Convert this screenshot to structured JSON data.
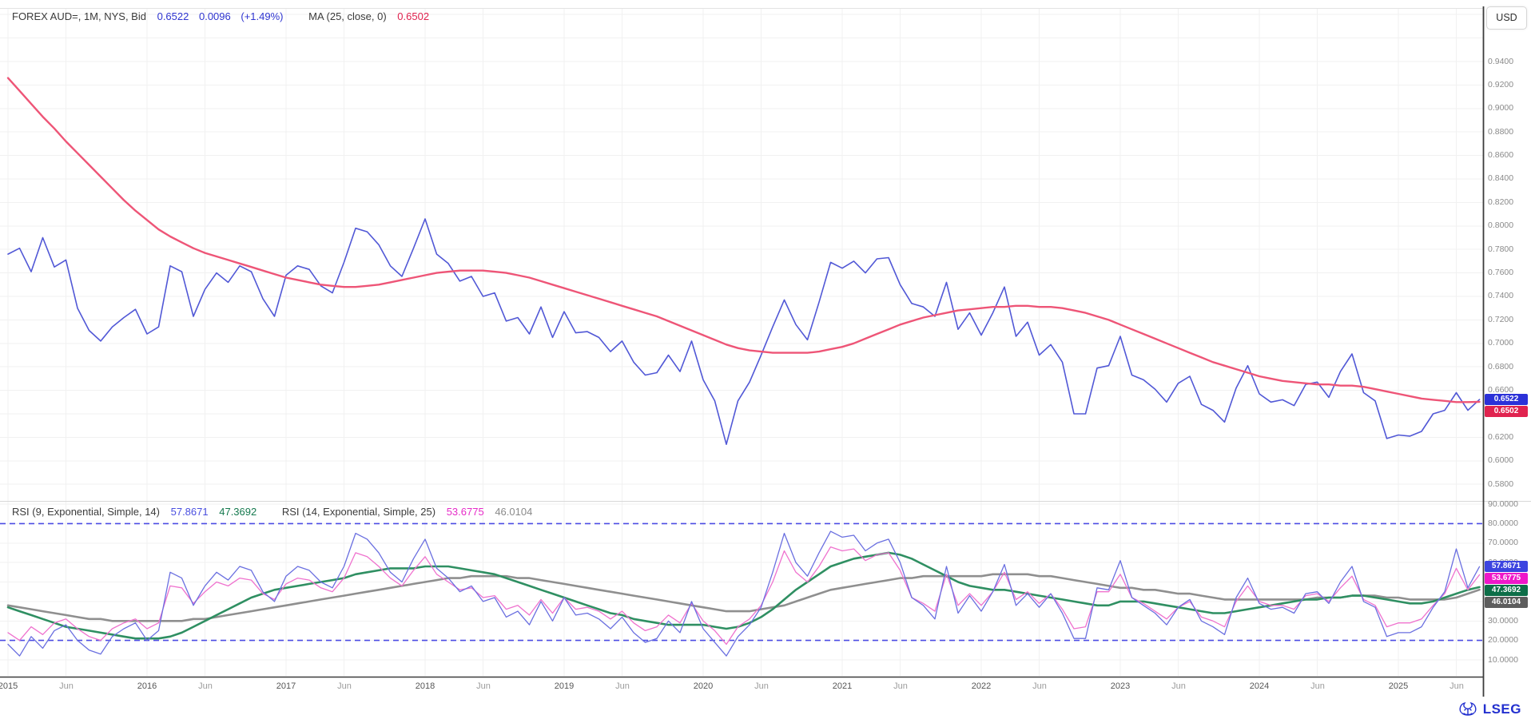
{
  "header": {
    "instrument": "FOREX AUD=, 1M, NYS, Bid",
    "bid": "0.6522",
    "change": "0.0096",
    "change_pct": "(+1.49%)",
    "ma_label": "MA (25, close, 0)",
    "ma_value": "0.6502",
    "accent_blue": "#2f35d0",
    "accent_red": "#e0234f"
  },
  "rsi_header": {
    "rsi9_label": "RSI (9, Exponential, Simple, 14)",
    "rsi9_value": "57.8671",
    "rsi9_signal_value": "47.3692",
    "rsi14_label": "RSI (14, Exponential, Simple, 25)",
    "rsi14_value": "53.6775",
    "rsi14_signal_value": "46.0104",
    "rsi9_color": "#4a4fe0",
    "rsi9_signal_color": "#15794e",
    "rsi14_color": "#e62bc8",
    "rsi14_signal_color": "#8a8a8a"
  },
  "axis_button": {
    "label": "USD"
  },
  "logo": {
    "text": "LSEG",
    "color": "#2330cf"
  },
  "price_badges": [
    {
      "label": "0.6522",
      "value": 0.6522,
      "color": "#2b31d8"
    },
    {
      "label": "0.6502",
      "value": 0.6502,
      "color": "#e0234f"
    }
  ],
  "rsi_badges": [
    {
      "label": "57.8671",
      "value": 57.8671,
      "color": "#3c44e0"
    },
    {
      "label": "53.6775",
      "value": 53.6775,
      "color": "#ef17c9"
    },
    {
      "label": "47.3692",
      "value": 47.3692,
      "color": "#0d6e48"
    },
    {
      "label": "46.0104",
      "value": 46.0104,
      "color": "#5d5d5d"
    }
  ],
  "chart_data": {
    "type": "line",
    "title": "FOREX AUD=, 1M, NYS, Bid — with MA(25) and RSI panel",
    "x_start": "2015-01",
    "x_interval": "monthly",
    "x_ticks": [
      {
        "m": 0,
        "label": "2015"
      },
      {
        "m": 5,
        "label": "Jun"
      },
      {
        "m": 12,
        "label": "2016"
      },
      {
        "m": 17,
        "label": "Jun"
      },
      {
        "m": 24,
        "label": "2017"
      },
      {
        "m": 29,
        "label": "Jun"
      },
      {
        "m": 36,
        "label": "2018"
      },
      {
        "m": 41,
        "label": "Jun"
      },
      {
        "m": 48,
        "label": "2019"
      },
      {
        "m": 53,
        "label": "Jun"
      },
      {
        "m": 60,
        "label": "2020"
      },
      {
        "m": 65,
        "label": "Jun"
      },
      {
        "m": 72,
        "label": "2021"
      },
      {
        "m": 77,
        "label": "Jun"
      },
      {
        "m": 84,
        "label": "2022"
      },
      {
        "m": 89,
        "label": "Jun"
      },
      {
        "m": 96,
        "label": "2023"
      },
      {
        "m": 101,
        "label": "Jun"
      },
      {
        "m": 108,
        "label": "2024"
      },
      {
        "m": 113,
        "label": "Jun"
      },
      {
        "m": 120,
        "label": "2025"
      },
      {
        "m": 125,
        "label": "Jun"
      }
    ],
    "panels": [
      {
        "name": "price",
        "unit": "USD",
        "ylim": [
          0.5665,
          0.9856
        ],
        "yticks": [
          0.94,
          0.92,
          0.9,
          0.88,
          0.86,
          0.84,
          0.82,
          0.8,
          0.78,
          0.76,
          0.74,
          0.72,
          0.7,
          0.68,
          0.66,
          0.64,
          0.62,
          0.6,
          0.58
        ],
        "grid": true,
        "series": [
          {
            "name": "bid",
            "color": "#5158d6",
            "width": 1.6,
            "last": 0.6522,
            "values": [
              0.776,
              0.781,
              0.761,
              0.79,
              0.765,
              0.771,
              0.73,
              0.711,
              0.702,
              0.714,
              0.722,
              0.729,
              0.708,
              0.714,
              0.766,
              0.761,
              0.723,
              0.746,
              0.76,
              0.752,
              0.766,
              0.761,
              0.738,
              0.723,
              0.758,
              0.766,
              0.763,
              0.749,
              0.743,
              0.769,
              0.798,
              0.795,
              0.784,
              0.766,
              0.757,
              0.781,
              0.806,
              0.776,
              0.768,
              0.753,
              0.757,
              0.74,
              0.743,
              0.719,
              0.722,
              0.708,
              0.731,
              0.705,
              0.727,
              0.709,
              0.71,
              0.705,
              0.693,
              0.702,
              0.684,
              0.673,
              0.675,
              0.69,
              0.676,
              0.702,
              0.669,
              0.651,
              0.614,
              0.651,
              0.667,
              0.69,
              0.714,
              0.737,
              0.716,
              0.703,
              0.735,
              0.769,
              0.764,
              0.77,
              0.76,
              0.772,
              0.773,
              0.75,
              0.734,
              0.731,
              0.723,
              0.752,
              0.712,
              0.726,
              0.707,
              0.726,
              0.748,
              0.706,
              0.718,
              0.69,
              0.699,
              0.684,
              0.64,
              0.64,
              0.679,
              0.681,
              0.706,
              0.673,
              0.669,
              0.661,
              0.65,
              0.666,
              0.672,
              0.648,
              0.643,
              0.633,
              0.662,
              0.681,
              0.657,
              0.65,
              0.652,
              0.647,
              0.665,
              0.667,
              0.654,
              0.676,
              0.691,
              0.658,
              0.651,
              0.619,
              0.622,
              0.621,
              0.625,
              0.64,
              0.643,
              0.658,
              0.643,
              0.6522
            ]
          },
          {
            "name": "ma25",
            "color": "#ee5577",
            "width": 2.4,
            "last": 0.6502,
            "values": [
              0.926,
              0.915,
              0.904,
              0.893,
              0.883,
              0.872,
              0.862,
              0.852,
              0.842,
              0.832,
              0.822,
              0.813,
              0.805,
              0.797,
              0.791,
              0.786,
              0.781,
              0.777,
              0.774,
              0.771,
              0.768,
              0.765,
              0.762,
              0.759,
              0.756,
              0.754,
              0.752,
              0.75,
              0.749,
              0.748,
              0.748,
              0.749,
              0.75,
              0.752,
              0.754,
              0.756,
              0.758,
              0.76,
              0.761,
              0.762,
              0.762,
              0.762,
              0.761,
              0.76,
              0.758,
              0.756,
              0.753,
              0.75,
              0.747,
              0.744,
              0.741,
              0.738,
              0.735,
              0.732,
              0.729,
              0.726,
              0.723,
              0.719,
              0.715,
              0.711,
              0.707,
              0.703,
              0.699,
              0.696,
              0.694,
              0.693,
              0.692,
              0.692,
              0.692,
              0.692,
              0.693,
              0.695,
              0.697,
              0.7,
              0.704,
              0.708,
              0.712,
              0.716,
              0.719,
              0.722,
              0.724,
              0.726,
              0.728,
              0.729,
              0.73,
              0.731,
              0.731,
              0.732,
              0.732,
              0.731,
              0.731,
              0.73,
              0.728,
              0.726,
              0.723,
              0.72,
              0.716,
              0.712,
              0.708,
              0.704,
              0.7,
              0.696,
              0.692,
              0.688,
              0.684,
              0.681,
              0.678,
              0.675,
              0.672,
              0.67,
              0.668,
              0.667,
              0.666,
              0.665,
              0.665,
              0.664,
              0.664,
              0.663,
              0.661,
              0.659,
              0.657,
              0.655,
              0.653,
              0.652,
              0.651,
              0.65,
              0.65,
              0.6502
            ]
          }
        ]
      },
      {
        "name": "rsi",
        "ylim": [
          1.6,
          90.6
        ],
        "yticks": [
          90,
          80,
          70,
          60,
          50,
          40,
          30,
          20,
          10
        ],
        "reference_lines": [
          80,
          20
        ],
        "reference_color": "#4b4be4",
        "grid": true,
        "series": [
          {
            "name": "rsi14_signal_sma25",
            "color": "#8f8f8f",
            "width": 2.6,
            "last": 46.0104,
            "values": [
              38,
              37,
              36,
              35,
              34,
              33,
              32,
              31,
              31,
              30,
              30,
              30,
              30,
              30,
              30,
              30,
              31,
              31,
              32,
              33,
              34,
              35,
              36,
              37,
              38,
              39,
              40,
              41,
              42,
              43,
              44,
              45,
              46,
              47,
              48,
              49,
              50,
              51,
              52,
              52,
              53,
              53,
              53,
              53,
              52,
              52,
              51,
              50,
              49,
              48,
              47,
              46,
              45,
              44,
              43,
              42,
              41,
              40,
              39,
              38,
              37,
              36,
              35,
              35,
              35,
              36,
              37,
              38,
              40,
              42,
              44,
              46,
              47,
              48,
              49,
              50,
              51,
              52,
              52,
              53,
              53,
              53,
              53,
              53,
              53,
              54,
              54,
              54,
              54,
              53,
              53,
              52,
              51,
              50,
              49,
              48,
              47,
              47,
              46,
              46,
              45,
              44,
              44,
              43,
              42,
              41,
              41,
              41,
              41,
              41,
              41,
              41,
              41,
              42,
              42,
              42,
              43,
              43,
              43,
              42,
              42,
              41,
              41,
              41,
              41,
              42,
              44,
              46.0104
            ]
          },
          {
            "name": "rsi9_signal_sma14",
            "color": "#2f8f62",
            "width": 2.6,
            "last": 47.3692,
            "values": [
              37,
              35,
              33,
              31,
              29,
              27,
              26,
              25,
              24,
              23,
              22,
              21,
              21,
              21,
              22,
              24,
              27,
              30,
              33,
              36,
              39,
              42,
              44,
              46,
              47,
              48,
              49,
              50,
              51,
              52,
              54,
              55,
              56,
              57,
              57,
              57,
              58,
              58,
              58,
              57,
              56,
              55,
              54,
              52,
              50,
              48,
              46,
              44,
              42,
              40,
              38,
              36,
              34,
              33,
              31,
              30,
              29,
              28,
              28,
              28,
              28,
              27,
              26,
              27,
              29,
              32,
              36,
              41,
              46,
              50,
              54,
              58,
              60,
              62,
              63,
              64,
              65,
              64,
              62,
              59,
              56,
              53,
              50,
              48,
              47,
              46,
              46,
              45,
              44,
              43,
              42,
              41,
              40,
              39,
              38,
              38,
              40,
              40,
              40,
              39,
              38,
              37,
              36,
              35,
              34,
              34,
              35,
              36,
              37,
              38,
              39,
              40,
              41,
              41,
              42,
              42,
              43,
              43,
              42,
              41,
              40,
              39,
              39,
              40,
              42,
              44,
              46,
              47.3692
            ]
          },
          {
            "name": "rsi14",
            "color": "#ef72ce",
            "width": 1.3,
            "last": 53.6775,
            "values": [
              24,
              20,
              27,
              23,
              29,
              31,
              26,
              22,
              20,
              26,
              29,
              31,
              26,
              29,
              48,
              47,
              39,
              45,
              50,
              48,
              52,
              51,
              44,
              41,
              49,
              52,
              51,
              47,
              45,
              52,
              65,
              63,
              58,
              52,
              48,
              56,
              63,
              54,
              50,
              46,
              47,
              42,
              43,
              36,
              38,
              33,
              41,
              34,
              42,
              36,
              37,
              35,
              31,
              35,
              29,
              25,
              27,
              33,
              29,
              39,
              30,
              25,
              18,
              27,
              31,
              38,
              50,
              66,
              55,
              50,
              58,
              68,
              66,
              67,
              61,
              64,
              65,
              56,
              42,
              39,
              35,
              54,
              38,
              44,
              38,
              45,
              55,
              41,
              45,
              39,
              44,
              36,
              26,
              27,
              45,
              45,
              54,
              42,
              39,
              35,
              31,
              37,
              40,
              32,
              30,
              27,
              40,
              48,
              40,
              38,
              38,
              36,
              43,
              44,
              40,
              47,
              53,
              41,
              38,
              27,
              29,
              29,
              31,
              38,
              44,
              57,
              46,
              53.6775
            ]
          },
          {
            "name": "rsi9",
            "color": "#6a6fe0",
            "width": 1.3,
            "last": 57.8671,
            "values": [
              18,
              12,
              22,
              16,
              25,
              28,
              20,
              15,
              13,
              22,
              26,
              29,
              20,
              25,
              55,
              52,
              38,
              48,
              55,
              51,
              58,
              56,
              45,
              40,
              53,
              58,
              56,
              50,
              47,
              58,
              75,
              72,
              65,
              55,
              50,
              62,
              72,
              57,
              52,
              45,
              48,
              40,
              42,
              32,
              35,
              28,
              40,
              30,
              42,
              33,
              34,
              31,
              26,
              32,
              24,
              19,
              21,
              30,
              24,
              40,
              26,
              19,
              12,
              22,
              28,
              37,
              55,
              75,
              60,
              53,
              65,
              76,
              73,
              74,
              66,
              70,
              72,
              60,
              42,
              38,
              31,
              58,
              34,
              43,
              35,
              45,
              59,
              38,
              44,
              37,
              44,
              34,
              21,
              21,
              47,
              46,
              61,
              42,
              38,
              34,
              28,
              37,
              41,
              30,
              27,
              23,
              42,
              52,
              39,
              36,
              37,
              34,
              44,
              45,
              39,
              50,
              58,
              40,
              37,
              22,
              24,
              24,
              27,
              37,
              45,
              67,
              47,
              57.8671
            ]
          }
        ]
      }
    ]
  }
}
